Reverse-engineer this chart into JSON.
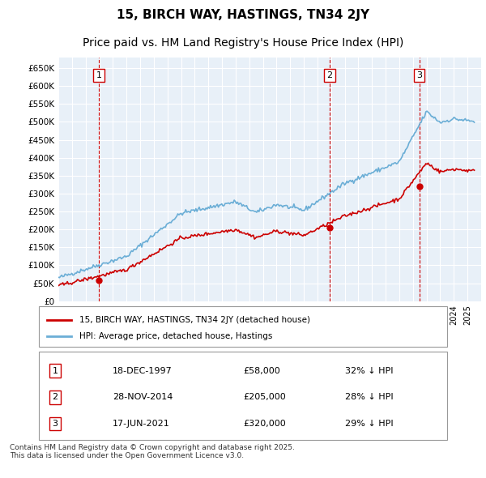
{
  "title": "15, BIRCH WAY, HASTINGS, TN34 2JY",
  "subtitle": "Price paid vs. HM Land Registry's House Price Index (HPI)",
  "ylabel": "",
  "ylim": [
    0,
    680000
  ],
  "yticks": [
    0,
    50000,
    100000,
    150000,
    200000,
    250000,
    300000,
    350000,
    400000,
    450000,
    500000,
    550000,
    600000,
    650000
  ],
  "xlim_start": 1995.0,
  "xlim_end": 2026.0,
  "hpi_color": "#6baed6",
  "sale_color": "#cc0000",
  "vline_color": "#cc0000",
  "grid_color": "#c8d8e8",
  "bg_color": "#e8f0f8",
  "sale_dates_year": [
    1997.96,
    2014.9,
    2021.46
  ],
  "sale_prices": [
    58000,
    205000,
    320000
  ],
  "sale_labels": [
    "1",
    "2",
    "3"
  ],
  "legend_sale_label": "15, BIRCH WAY, HASTINGS, TN34 2JY (detached house)",
  "legend_hpi_label": "HPI: Average price, detached house, Hastings",
  "table_data": [
    [
      "1",
      "18-DEC-1997",
      "£58,000",
      "32% ↓ HPI"
    ],
    [
      "2",
      "28-NOV-2014",
      "£205,000",
      "28% ↓ HPI"
    ],
    [
      "3",
      "17-JUN-2021",
      "£320,000",
      "29% ↓ HPI"
    ]
  ],
  "footnote": "Contains HM Land Registry data © Crown copyright and database right 2025.\nThis data is licensed under the Open Government Licence v3.0.",
  "title_fontsize": 11,
  "subtitle_fontsize": 10
}
